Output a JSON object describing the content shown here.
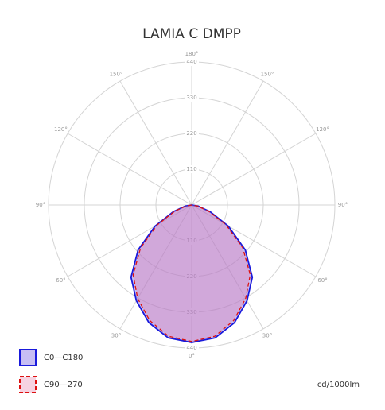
{
  "chart_data": {
    "type": "polar",
    "title": "LAMIA C DMPP",
    "unit_label": "cd/1000lm",
    "x": [
      -90,
      -80,
      -70,
      -60,
      -50,
      -40,
      -30,
      -20,
      -10,
      0,
      10,
      20,
      30,
      40,
      50,
      60,
      70,
      80,
      90
    ],
    "series": [
      {
        "name": "C0—C180",
        "color": "#1a1adb",
        "fill": "rgba(130,110,230,0.45)",
        "dashed": false,
        "values": [
          0,
          20,
          60,
          130,
          215,
          290,
          340,
          385,
          415,
          423,
          415,
          385,
          340,
          290,
          215,
          130,
          60,
          20,
          0
        ]
      },
      {
        "name": "C90—270",
        "color": "#dd1111",
        "fill": "rgba(230,130,170,0.35)",
        "dashed": true,
        "values": [
          0,
          18,
          55,
          122,
          205,
          280,
          332,
          378,
          410,
          420,
          410,
          378,
          332,
          280,
          205,
          122,
          55,
          18,
          0
        ]
      }
    ],
    "rlim": [
      0,
      440
    ],
    "rticks": [
      110,
      220,
      330,
      440
    ],
    "angleticks": [
      {
        "value": 0,
        "label": "0°"
      },
      {
        "value": 30,
        "label": "30°"
      },
      {
        "value": 60,
        "label": "60°"
      },
      {
        "value": 90,
        "label": "90°"
      },
      {
        "value": 120,
        "label": "120°"
      },
      {
        "value": 150,
        "label": "150°"
      },
      {
        "value": 180,
        "label": "180°"
      },
      {
        "value": 210,
        "label": "150°"
      },
      {
        "value": 240,
        "label": "120°"
      },
      {
        "value": 270,
        "label": "90°"
      },
      {
        "value": 300,
        "label": "60°"
      },
      {
        "value": 330,
        "label": "30°"
      }
    ],
    "grid": true
  }
}
